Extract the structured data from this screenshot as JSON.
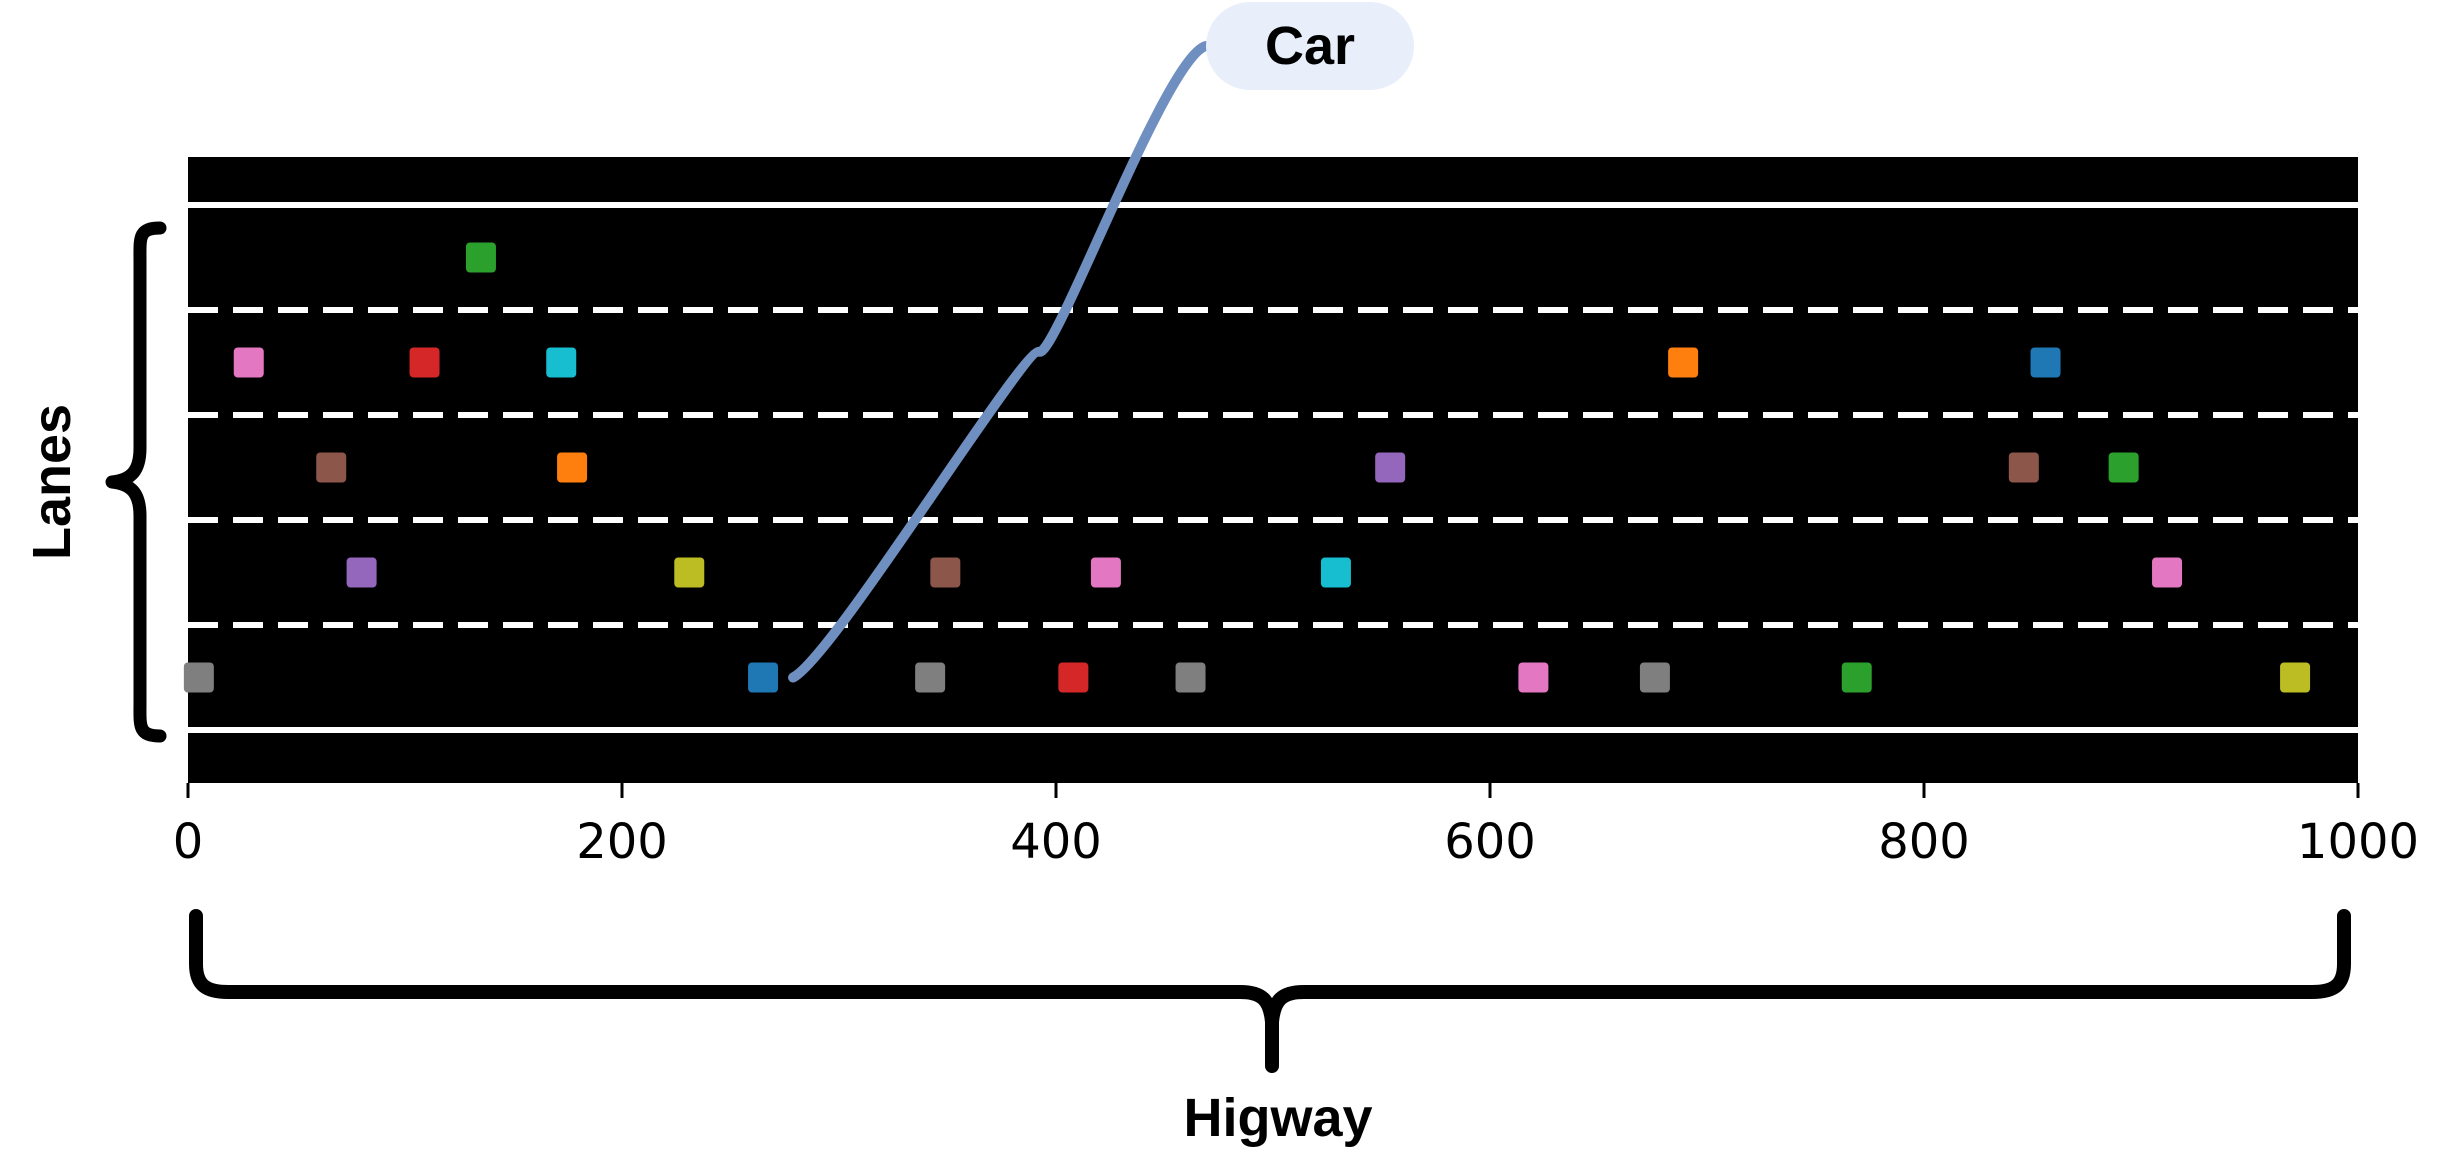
{
  "annotations": {
    "car_label": "Car",
    "lanes_label": "Lanes",
    "highway_label": "Higway"
  },
  "chart_data": {
    "type": "scatter",
    "xlim": [
      0,
      1000
    ],
    "lanes": 5,
    "ticks": [
      "0",
      "200",
      "400",
      "600",
      "800",
      "1000"
    ],
    "tick_values": [
      0,
      200,
      400,
      600,
      800,
      1000
    ],
    "background_color": "#000000",
    "lane_line_color": "#ffffff",
    "cars": [
      {
        "x": 135,
        "lane": 1,
        "color": "#2ca02c"
      },
      {
        "x": 28,
        "lane": 2,
        "color": "#e377c2"
      },
      {
        "x": 109,
        "lane": 2,
        "color": "#d62728"
      },
      {
        "x": 172,
        "lane": 2,
        "color": "#17becf"
      },
      {
        "x": 689,
        "lane": 2,
        "color": "#ff7f0e"
      },
      {
        "x": 856,
        "lane": 2,
        "color": "#1f77b4"
      },
      {
        "x": 66,
        "lane": 3,
        "color": "#8c564b"
      },
      {
        "x": 177,
        "lane": 3,
        "color": "#ff7f0e"
      },
      {
        "x": 554,
        "lane": 3,
        "color": "#9467bd"
      },
      {
        "x": 846,
        "lane": 3,
        "color": "#8c564b"
      },
      {
        "x": 892,
        "lane": 3,
        "color": "#2ca02c"
      },
      {
        "x": 80,
        "lane": 4,
        "color": "#9467bd"
      },
      {
        "x": 231,
        "lane": 4,
        "color": "#bcbd22"
      },
      {
        "x": 349,
        "lane": 4,
        "color": "#8c564b"
      },
      {
        "x": 423,
        "lane": 4,
        "color": "#e377c2"
      },
      {
        "x": 529,
        "lane": 4,
        "color": "#17becf"
      },
      {
        "x": 912,
        "lane": 4,
        "color": "#e377c2"
      },
      {
        "x": 5,
        "lane": 5,
        "color": "#7f7f7f"
      },
      {
        "x": 265,
        "lane": 5,
        "color": "#1f77b4"
      },
      {
        "x": 342,
        "lane": 5,
        "color": "#7f7f7f"
      },
      {
        "x": 408,
        "lane": 5,
        "color": "#d62728"
      },
      {
        "x": 462,
        "lane": 5,
        "color": "#7f7f7f"
      },
      {
        "x": 620,
        "lane": 5,
        "color": "#e377c2"
      },
      {
        "x": 676,
        "lane": 5,
        "color": "#7f7f7f"
      },
      {
        "x": 769,
        "lane": 5,
        "color": "#2ca02c"
      },
      {
        "x": 971,
        "lane": 5,
        "color": "#bcbd22"
      }
    ],
    "highlighted_car": {
      "x": 265,
      "lane": 5
    }
  }
}
